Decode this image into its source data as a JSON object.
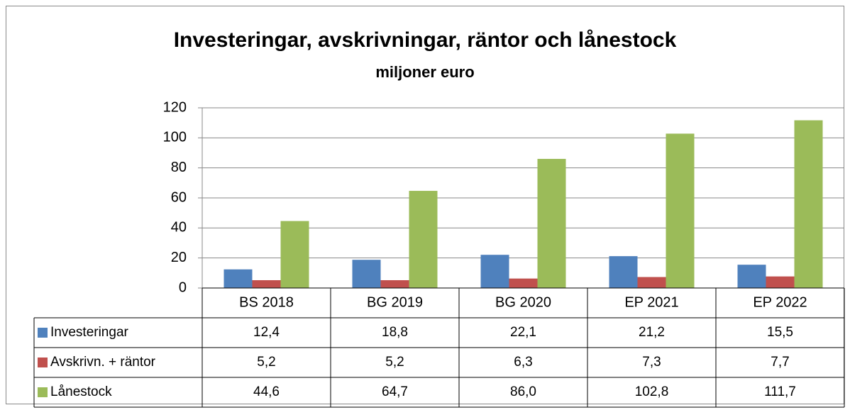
{
  "chart_data": {
    "type": "bar",
    "title": "Investeringar, avskrivningar, räntor och lånestock",
    "subtitle": "miljoner euro",
    "categories": [
      "BS 2018",
      "BG 2019",
      "BG 2020",
      "EP 2021",
      "EP 2022"
    ],
    "series": [
      {
        "name": "Investeringar",
        "color": "#4f81bd",
        "values": [
          12.4,
          18.8,
          22.1,
          21.2,
          15.5
        ],
        "value_labels": [
          "12,4",
          "18,8",
          "22,1",
          "21,2",
          "15,5"
        ]
      },
      {
        "name": "Avskrivn. + räntor",
        "color": "#c0504d",
        "values": [
          5.2,
          5.2,
          6.3,
          7.3,
          7.7
        ],
        "value_labels": [
          "5,2",
          "5,2",
          "6,3",
          "7,3",
          "7,7"
        ]
      },
      {
        "name": "Lånestock",
        "color": "#9bbb59",
        "values": [
          44.6,
          64.7,
          86.0,
          102.8,
          111.7
        ],
        "value_labels": [
          "44,6",
          "64,7",
          "86,0",
          "102,8",
          "111,7"
        ]
      }
    ],
    "ylim": [
      0,
      120
    ],
    "yticks": [
      0,
      20,
      40,
      60,
      80,
      100,
      120
    ],
    "grid": true,
    "legend": "table"
  }
}
